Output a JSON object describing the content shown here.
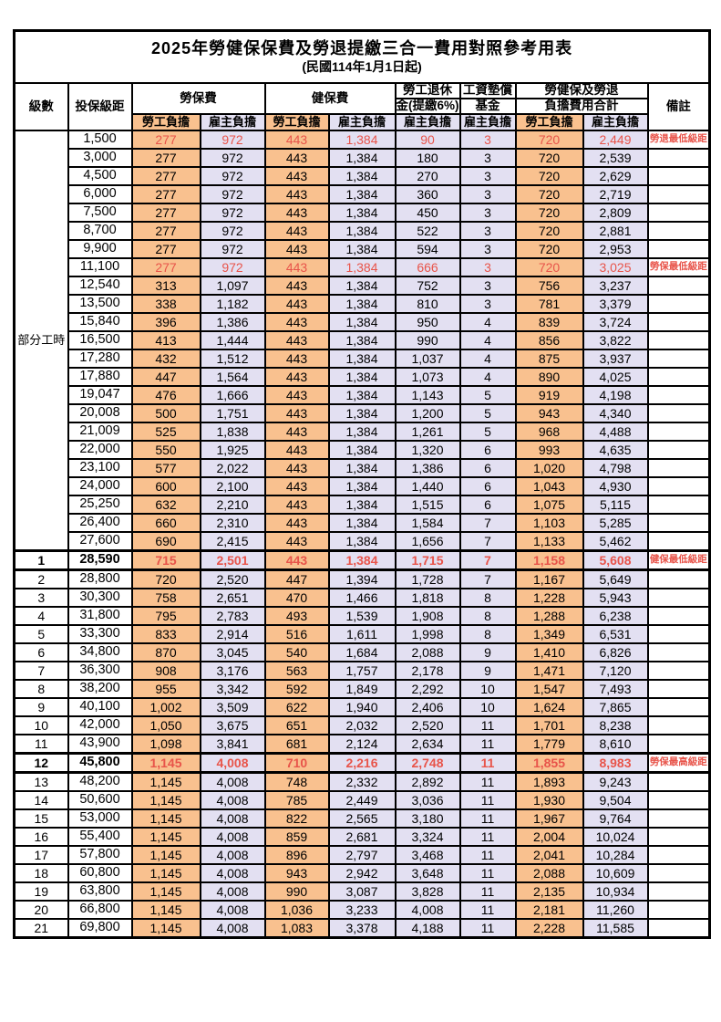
{
  "title": "2025年勞健保保費及勞退提繳三合一費用對照參考用表",
  "subtitle": "(民國114年1月1日起)",
  "colors": {
    "employee_bg": "#F9C18F",
    "employer_bg": "#E3E0F2",
    "highlight_red": "#E8544A"
  },
  "header": {
    "level": "級數",
    "bracket": "投保級距",
    "labor_ins": "勞保費",
    "health_ins": "健保費",
    "pension_line1": "勞工退休",
    "pension_line2": "金(提繳6%)",
    "fund_line1": "工資墊償",
    "fund_line2": "基金",
    "total_line1": "勞健保及勞退",
    "total_line2": "負擔費用合計",
    "note": "備註",
    "employee": "勞工負擔",
    "employer": "雇主負擔"
  },
  "part_time_label": "部分工時",
  "part_time_row_count": 23,
  "rows": [
    {
      "level": "",
      "bracket": "1,500",
      "values": [
        "277",
        "972",
        "443",
        "1,384",
        "90",
        "3",
        "720",
        "2,449"
      ],
      "note": "勞退最低級距",
      "red": true,
      "bold": false
    },
    {
      "level": "",
      "bracket": "3,000",
      "values": [
        "277",
        "972",
        "443",
        "1,384",
        "180",
        "3",
        "720",
        "2,539"
      ],
      "note": "",
      "red": false,
      "bold": false
    },
    {
      "level": "",
      "bracket": "4,500",
      "values": [
        "277",
        "972",
        "443",
        "1,384",
        "270",
        "3",
        "720",
        "2,629"
      ],
      "note": "",
      "red": false,
      "bold": false
    },
    {
      "level": "",
      "bracket": "6,000",
      "values": [
        "277",
        "972",
        "443",
        "1,384",
        "360",
        "3",
        "720",
        "2,719"
      ],
      "note": "",
      "red": false,
      "bold": false
    },
    {
      "level": "",
      "bracket": "7,500",
      "values": [
        "277",
        "972",
        "443",
        "1,384",
        "450",
        "3",
        "720",
        "2,809"
      ],
      "note": "",
      "red": false,
      "bold": false
    },
    {
      "level": "",
      "bracket": "8,700",
      "values": [
        "277",
        "972",
        "443",
        "1,384",
        "522",
        "3",
        "720",
        "2,881"
      ],
      "note": "",
      "red": false,
      "bold": false
    },
    {
      "level": "",
      "bracket": "9,900",
      "values": [
        "277",
        "972",
        "443",
        "1,384",
        "594",
        "3",
        "720",
        "2,953"
      ],
      "note": "",
      "red": false,
      "bold": false
    },
    {
      "level": "",
      "bracket": "11,100",
      "values": [
        "277",
        "972",
        "443",
        "1,384",
        "666",
        "3",
        "720",
        "3,025"
      ],
      "note": "勞保最低級距",
      "red": true,
      "bold": false
    },
    {
      "level": "",
      "bracket": "12,540",
      "values": [
        "313",
        "1,097",
        "443",
        "1,384",
        "752",
        "3",
        "756",
        "3,237"
      ],
      "note": "",
      "red": false,
      "bold": false
    },
    {
      "level": "",
      "bracket": "13,500",
      "values": [
        "338",
        "1,182",
        "443",
        "1,384",
        "810",
        "3",
        "781",
        "3,379"
      ],
      "note": "",
      "red": false,
      "bold": false
    },
    {
      "level": "",
      "bracket": "15,840",
      "values": [
        "396",
        "1,386",
        "443",
        "1,384",
        "950",
        "4",
        "839",
        "3,724"
      ],
      "note": "",
      "red": false,
      "bold": false
    },
    {
      "level": "",
      "bracket": "16,500",
      "values": [
        "413",
        "1,444",
        "443",
        "1,384",
        "990",
        "4",
        "856",
        "3,822"
      ],
      "note": "",
      "red": false,
      "bold": false
    },
    {
      "level": "",
      "bracket": "17,280",
      "values": [
        "432",
        "1,512",
        "443",
        "1,384",
        "1,037",
        "4",
        "875",
        "3,937"
      ],
      "note": "",
      "red": false,
      "bold": false
    },
    {
      "level": "",
      "bracket": "17,880",
      "values": [
        "447",
        "1,564",
        "443",
        "1,384",
        "1,073",
        "4",
        "890",
        "4,025"
      ],
      "note": "",
      "red": false,
      "bold": false
    },
    {
      "level": "",
      "bracket": "19,047",
      "values": [
        "476",
        "1,666",
        "443",
        "1,384",
        "1,143",
        "5",
        "919",
        "4,198"
      ],
      "note": "",
      "red": false,
      "bold": false
    },
    {
      "level": "",
      "bracket": "20,008",
      "values": [
        "500",
        "1,751",
        "443",
        "1,384",
        "1,200",
        "5",
        "943",
        "4,340"
      ],
      "note": "",
      "red": false,
      "bold": false
    },
    {
      "level": "",
      "bracket": "21,009",
      "values": [
        "525",
        "1,838",
        "443",
        "1,384",
        "1,261",
        "5",
        "968",
        "4,488"
      ],
      "note": "",
      "red": false,
      "bold": false
    },
    {
      "level": "",
      "bracket": "22,000",
      "values": [
        "550",
        "1,925",
        "443",
        "1,384",
        "1,320",
        "6",
        "993",
        "4,635"
      ],
      "note": "",
      "red": false,
      "bold": false
    },
    {
      "level": "",
      "bracket": "23,100",
      "values": [
        "577",
        "2,022",
        "443",
        "1,384",
        "1,386",
        "6",
        "1,020",
        "4,798"
      ],
      "note": "",
      "red": false,
      "bold": false
    },
    {
      "level": "",
      "bracket": "24,000",
      "values": [
        "600",
        "2,100",
        "443",
        "1,384",
        "1,440",
        "6",
        "1,043",
        "4,930"
      ],
      "note": "",
      "red": false,
      "bold": false
    },
    {
      "level": "",
      "bracket": "25,250",
      "values": [
        "632",
        "2,210",
        "443",
        "1,384",
        "1,515",
        "6",
        "1,075",
        "5,115"
      ],
      "note": "",
      "red": false,
      "bold": false
    },
    {
      "level": "",
      "bracket": "26,400",
      "values": [
        "660",
        "2,310",
        "443",
        "1,384",
        "1,584",
        "7",
        "1,103",
        "5,285"
      ],
      "note": "",
      "red": false,
      "bold": false
    },
    {
      "level": "",
      "bracket": "27,600",
      "values": [
        "690",
        "2,415",
        "443",
        "1,384",
        "1,656",
        "7",
        "1,133",
        "5,462"
      ],
      "note": "",
      "red": false,
      "bold": false
    },
    {
      "level": "1",
      "bracket": "28,590",
      "values": [
        "715",
        "2,501",
        "443",
        "1,384",
        "1,715",
        "7",
        "1,158",
        "5,608"
      ],
      "note": "健保最低級距",
      "red": true,
      "bold": true
    },
    {
      "level": "2",
      "bracket": "28,800",
      "values": [
        "720",
        "2,520",
        "447",
        "1,394",
        "1,728",
        "7",
        "1,167",
        "5,649"
      ],
      "note": "",
      "red": false,
      "bold": false
    },
    {
      "level": "3",
      "bracket": "30,300",
      "values": [
        "758",
        "2,651",
        "470",
        "1,466",
        "1,818",
        "8",
        "1,228",
        "5,943"
      ],
      "note": "",
      "red": false,
      "bold": false
    },
    {
      "level": "4",
      "bracket": "31,800",
      "values": [
        "795",
        "2,783",
        "493",
        "1,539",
        "1,908",
        "8",
        "1,288",
        "6,238"
      ],
      "note": "",
      "red": false,
      "bold": false
    },
    {
      "level": "5",
      "bracket": "33,300",
      "values": [
        "833",
        "2,914",
        "516",
        "1,611",
        "1,998",
        "8",
        "1,349",
        "6,531"
      ],
      "note": "",
      "red": false,
      "bold": false
    },
    {
      "level": "6",
      "bracket": "34,800",
      "values": [
        "870",
        "3,045",
        "540",
        "1,684",
        "2,088",
        "9",
        "1,410",
        "6,826"
      ],
      "note": "",
      "red": false,
      "bold": false
    },
    {
      "level": "7",
      "bracket": "36,300",
      "values": [
        "908",
        "3,176",
        "563",
        "1,757",
        "2,178",
        "9",
        "1,471",
        "7,120"
      ],
      "note": "",
      "red": false,
      "bold": false
    },
    {
      "level": "8",
      "bracket": "38,200",
      "values": [
        "955",
        "3,342",
        "592",
        "1,849",
        "2,292",
        "10",
        "1,547",
        "7,493"
      ],
      "note": "",
      "red": false,
      "bold": false
    },
    {
      "level": "9",
      "bracket": "40,100",
      "values": [
        "1,002",
        "3,509",
        "622",
        "1,940",
        "2,406",
        "10",
        "1,624",
        "7,865"
      ],
      "note": "",
      "red": false,
      "bold": false
    },
    {
      "level": "10",
      "bracket": "42,000",
      "values": [
        "1,050",
        "3,675",
        "651",
        "2,032",
        "2,520",
        "11",
        "1,701",
        "8,238"
      ],
      "note": "",
      "red": false,
      "bold": false
    },
    {
      "level": "11",
      "bracket": "43,900",
      "values": [
        "1,098",
        "3,841",
        "681",
        "2,124",
        "2,634",
        "11",
        "1,779",
        "8,610"
      ],
      "note": "",
      "red": false,
      "bold": false
    },
    {
      "level": "12",
      "bracket": "45,800",
      "values": [
        "1,145",
        "4,008",
        "710",
        "2,216",
        "2,748",
        "11",
        "1,855",
        "8,983"
      ],
      "note": "勞保最高級距",
      "red": true,
      "bold": true
    },
    {
      "level": "13",
      "bracket": "48,200",
      "values": [
        "1,145",
        "4,008",
        "748",
        "2,332",
        "2,892",
        "11",
        "1,893",
        "9,243"
      ],
      "note": "",
      "red": false,
      "bold": false
    },
    {
      "level": "14",
      "bracket": "50,600",
      "values": [
        "1,145",
        "4,008",
        "785",
        "2,449",
        "3,036",
        "11",
        "1,930",
        "9,504"
      ],
      "note": "",
      "red": false,
      "bold": false
    },
    {
      "level": "15",
      "bracket": "53,000",
      "values": [
        "1,145",
        "4,008",
        "822",
        "2,565",
        "3,180",
        "11",
        "1,967",
        "9,764"
      ],
      "note": "",
      "red": false,
      "bold": false
    },
    {
      "level": "16",
      "bracket": "55,400",
      "values": [
        "1,145",
        "4,008",
        "859",
        "2,681",
        "3,324",
        "11",
        "2,004",
        "10,024"
      ],
      "note": "",
      "red": false,
      "bold": false
    },
    {
      "level": "17",
      "bracket": "57,800",
      "values": [
        "1,145",
        "4,008",
        "896",
        "2,797",
        "3,468",
        "11",
        "2,041",
        "10,284"
      ],
      "note": "",
      "red": false,
      "bold": false
    },
    {
      "level": "18",
      "bracket": "60,800",
      "values": [
        "1,145",
        "4,008",
        "943",
        "2,942",
        "3,648",
        "11",
        "2,088",
        "10,609"
      ],
      "note": "",
      "red": false,
      "bold": false
    },
    {
      "level": "19",
      "bracket": "63,800",
      "values": [
        "1,145",
        "4,008",
        "990",
        "3,087",
        "3,828",
        "11",
        "2,135",
        "10,934"
      ],
      "note": "",
      "red": false,
      "bold": false
    },
    {
      "level": "20",
      "bracket": "66,800",
      "values": [
        "1,145",
        "4,008",
        "1,036",
        "3,233",
        "4,008",
        "11",
        "2,181",
        "11,260"
      ],
      "note": "",
      "red": false,
      "bold": false
    },
    {
      "level": "21",
      "bracket": "69,800",
      "values": [
        "1,145",
        "4,008",
        "1,083",
        "3,378",
        "4,188",
        "11",
        "2,228",
        "11,585"
      ],
      "note": "",
      "red": false,
      "bold": false
    }
  ]
}
